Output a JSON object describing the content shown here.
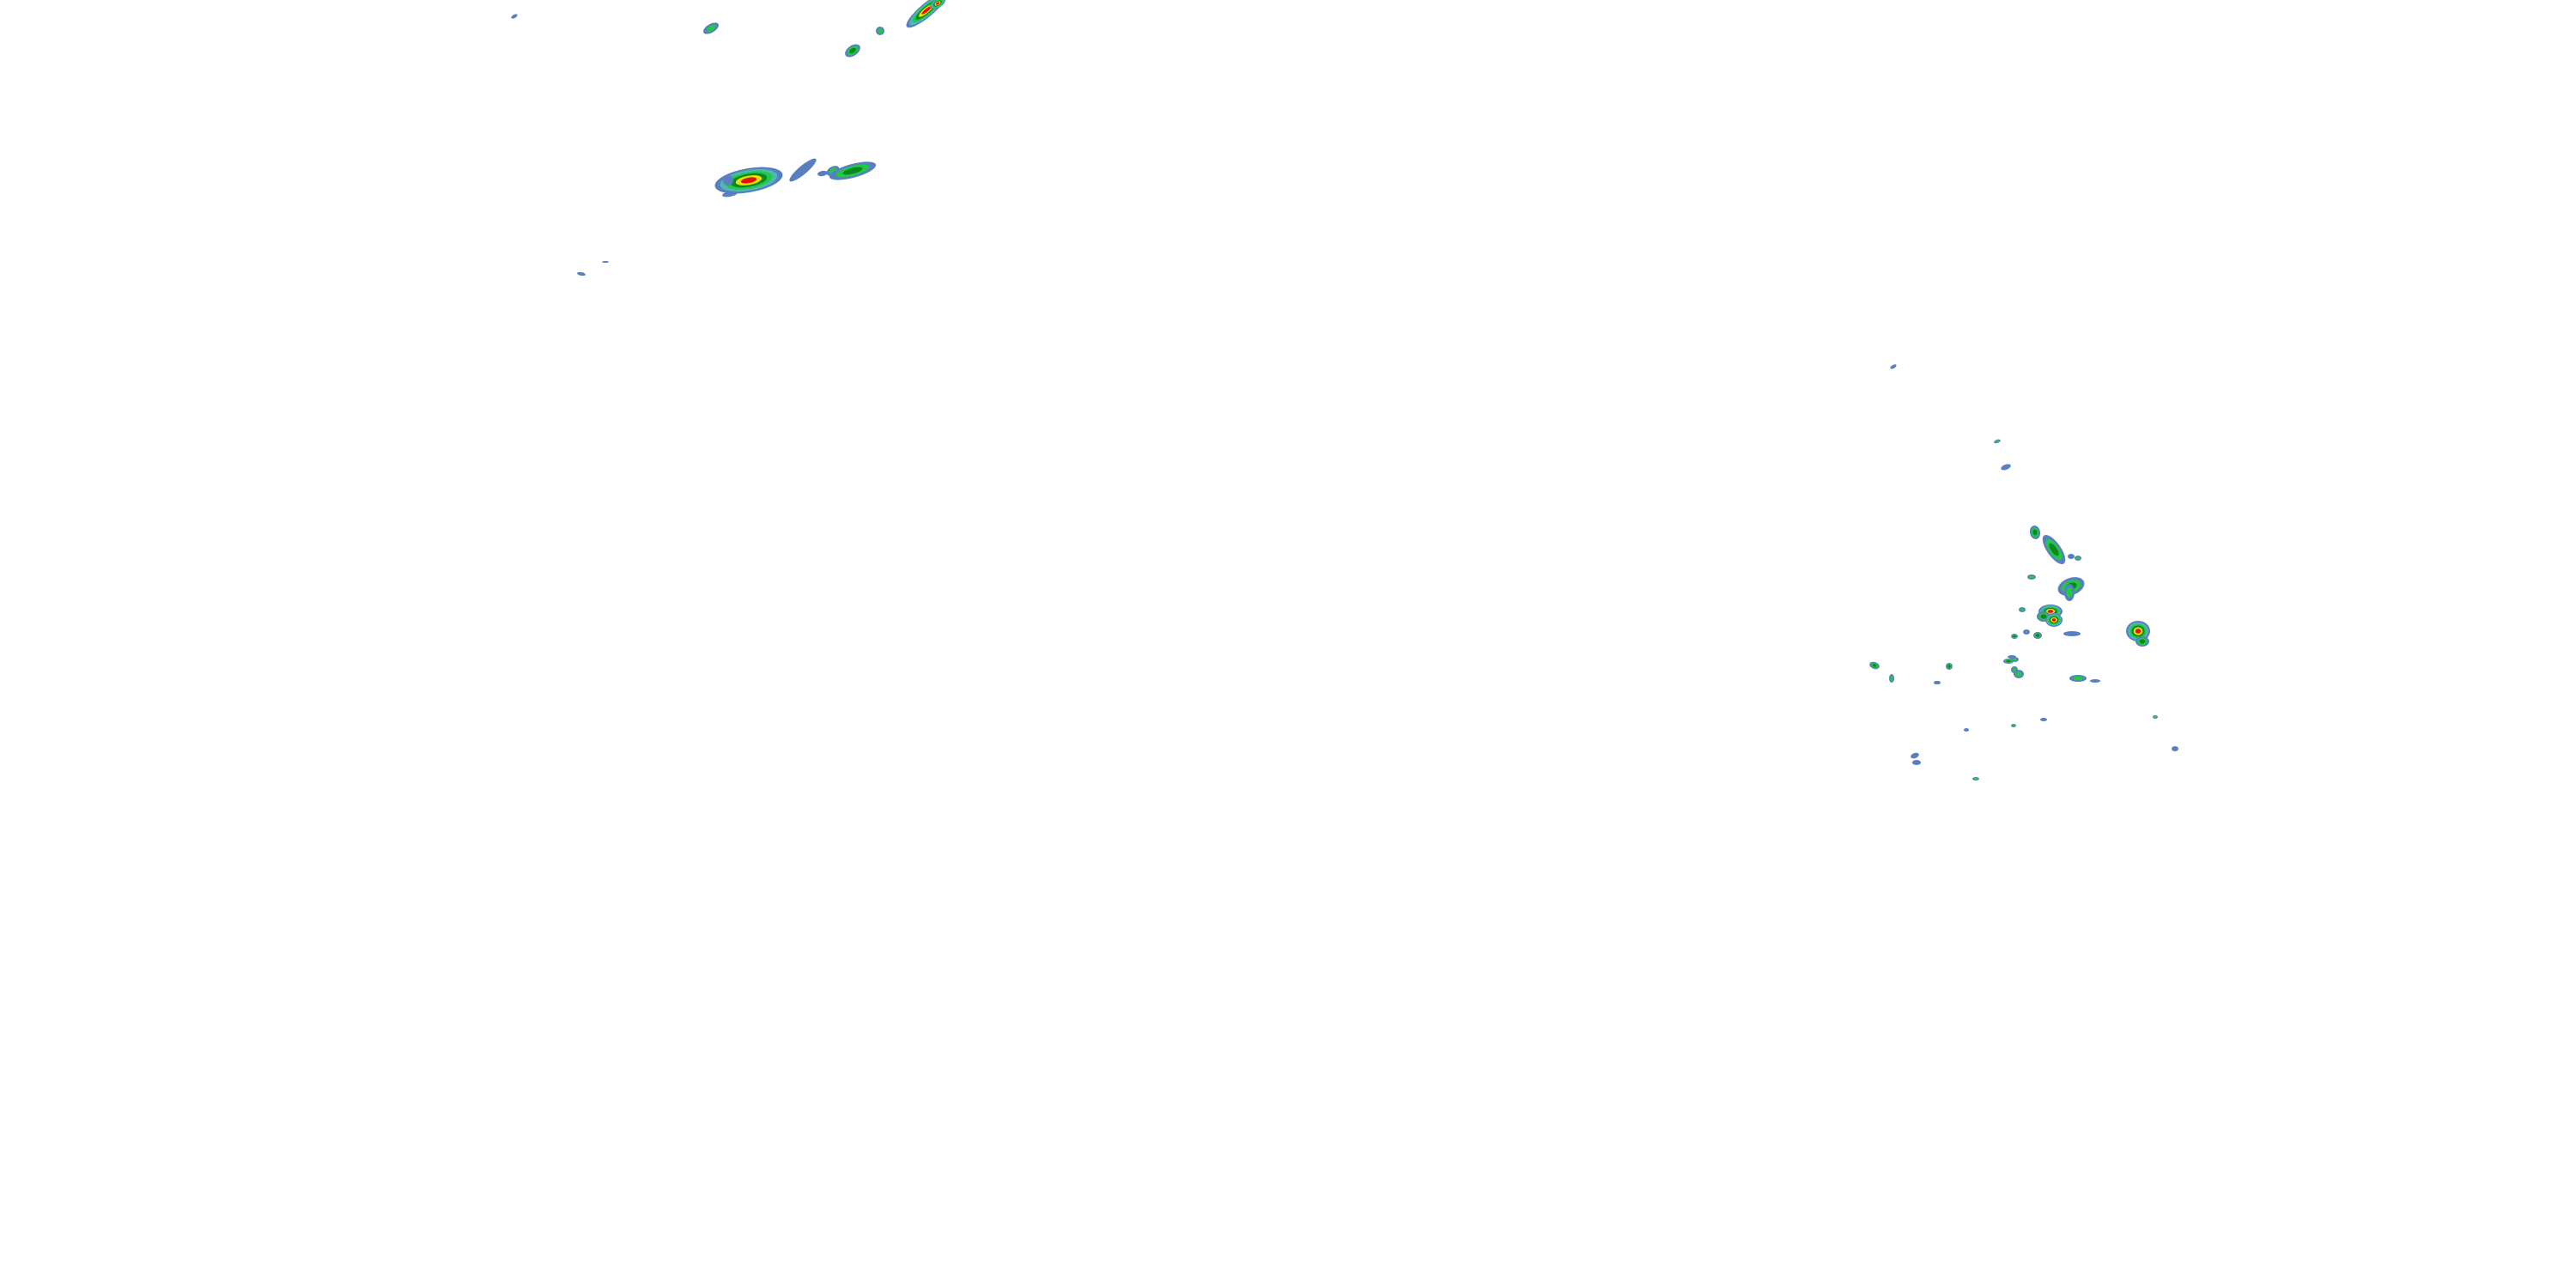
{
  "map": {
    "layer": "radar-reflectivity",
    "background": "#ffffff",
    "palette": {
      "light": "#5a7fc0",
      "light_cyan": "#4fb8b0",
      "moderate": "#22c84a",
      "moderate_dark": "#0a8a1e",
      "heavy": "#f0e000",
      "very_heavy": "#f08000",
      "intense": "#e01010"
    }
  }
}
